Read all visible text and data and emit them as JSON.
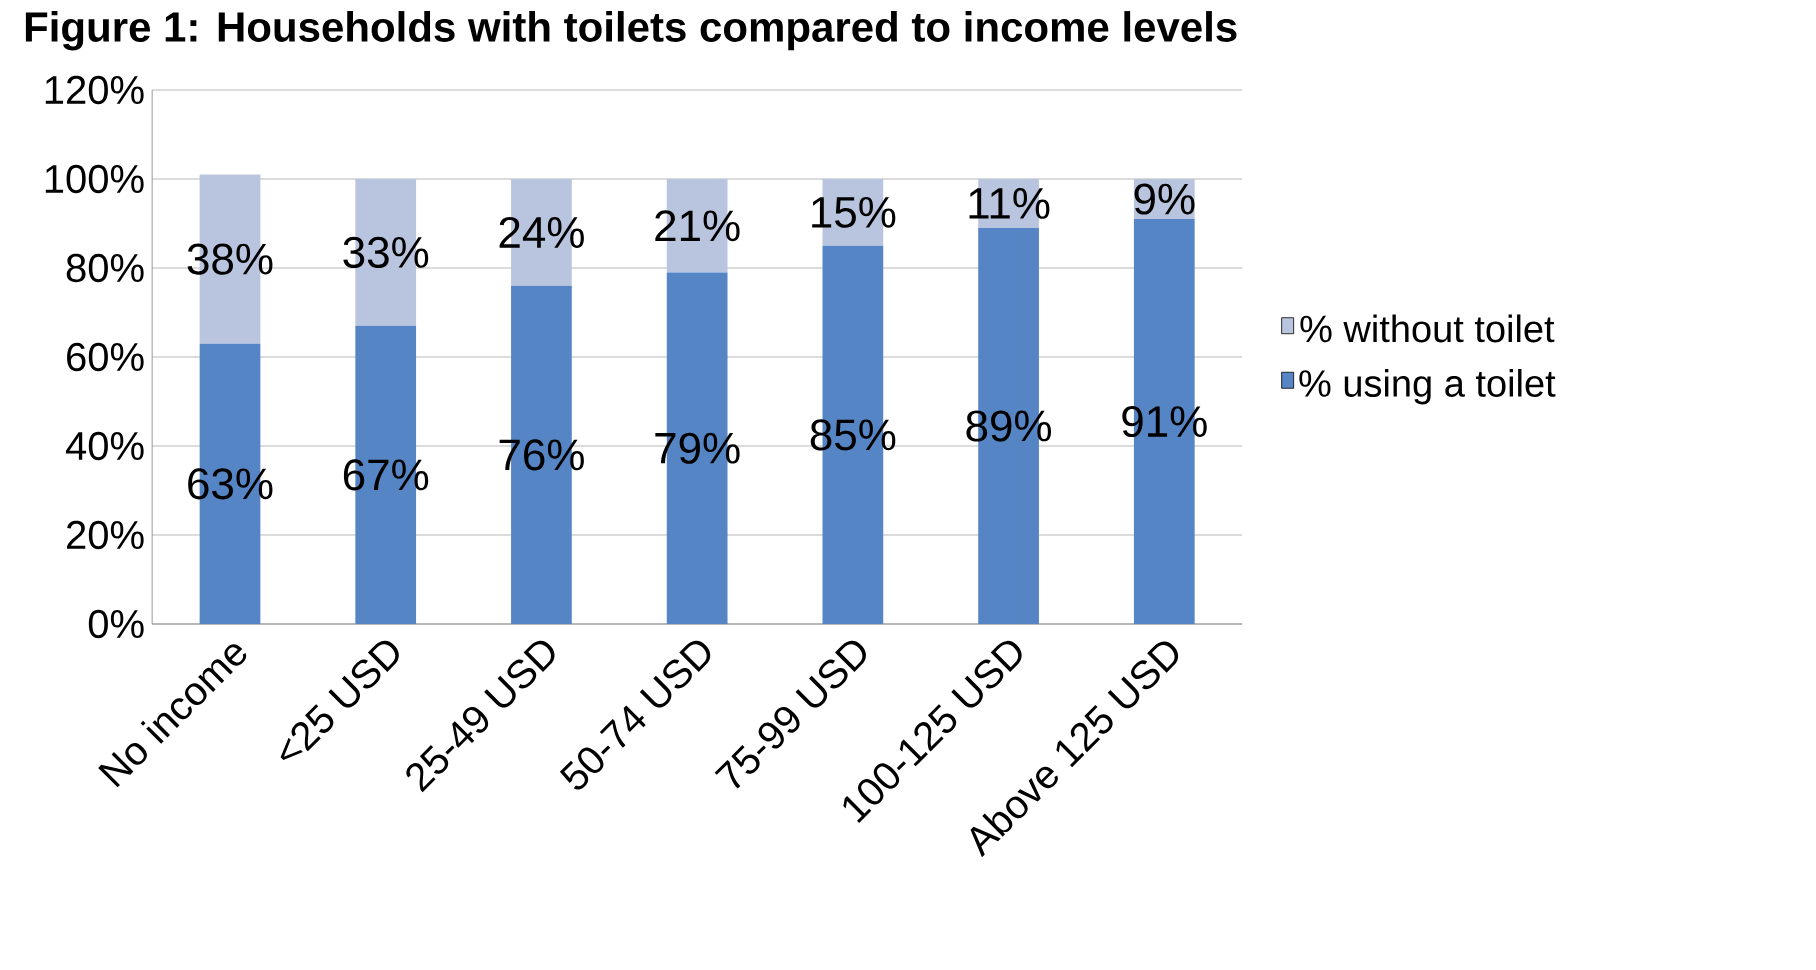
{
  "chart_data": {
    "type": "bar",
    "title": "Figure 1: Households with toilets compared to income levels",
    "stacked": true,
    "categories": [
      "No income",
      "<25 USD",
      "25-49 USD",
      "50-74 USD",
      "75-99 USD",
      "100-125 USD",
      "Above 125 USD"
    ],
    "series": [
      {
        "name": "% using a toilet",
        "color": "#5585c5",
        "values": [
          63,
          67,
          76,
          79,
          85,
          89,
          91
        ],
        "value_labels": [
          "63%",
          "67%",
          "76%",
          "79%",
          "85%",
          "89%",
          "91%"
        ]
      },
      {
        "name": "% without toilet",
        "color": "#b9c4de",
        "values": [
          38,
          33,
          24,
          21,
          15,
          11,
          9
        ],
        "value_labels": [
          "38%",
          "33%",
          "24%",
          "21%",
          "15%",
          "11%",
          "9%"
        ]
      }
    ],
    "ylim": [
      0,
      120
    ],
    "yticks": [
      {
        "value": 0,
        "label": "0%"
      },
      {
        "value": 20,
        "label": "20%"
      },
      {
        "value": 40,
        "label": "40%"
      },
      {
        "value": 60,
        "label": "60%"
      },
      {
        "value": 80,
        "label": "80%"
      },
      {
        "value": 100,
        "label": "100%"
      },
      {
        "value": 120,
        "label": "120%"
      }
    ],
    "grid": "y",
    "legend": "right"
  }
}
